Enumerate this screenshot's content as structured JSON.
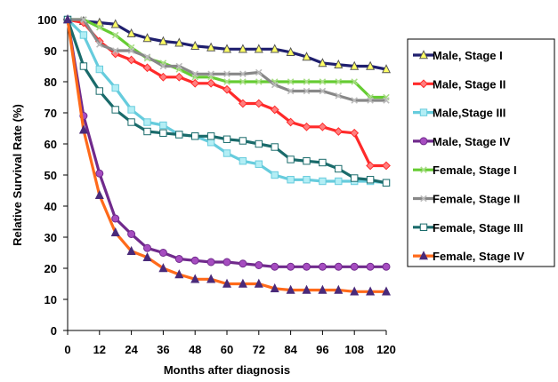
{
  "chart_data": {
    "type": "line",
    "xlabel": "Months after diagnosis",
    "ylabel": "Relative Survival Rate (%)",
    "xlim": [
      0,
      120
    ],
    "ylim": [
      0,
      100
    ],
    "x_ticks": [
      0,
      12,
      24,
      36,
      48,
      60,
      72,
      84,
      96,
      108,
      120
    ],
    "y_ticks": [
      0,
      10,
      20,
      30,
      40,
      50,
      60,
      70,
      80,
      90,
      100
    ],
    "grid": false,
    "legend_position": "right",
    "x": [
      0,
      6,
      12,
      18,
      24,
      30,
      36,
      42,
      48,
      54,
      60,
      66,
      72,
      78,
      84,
      90,
      96,
      102,
      108,
      114,
      120
    ],
    "series": [
      {
        "name": "Male, Stage I",
        "line_color": "#1f1f6e",
        "marker": "triangle",
        "marker_fill": "#ffff66",
        "marker_stroke": "#555555",
        "values": [
          100,
          99.5,
          99,
          98.5,
          95.5,
          94,
          93,
          92.5,
          91.5,
          91,
          90.5,
          90.5,
          90.5,
          90.5,
          89.5,
          88,
          86,
          85.5,
          85,
          85,
          84
        ]
      },
      {
        "name": "Male, Stage II",
        "line_color": "#ff2a2a",
        "marker": "diamond",
        "marker_fill": "#ff7f7f",
        "marker_stroke": "#ff2a2a",
        "values": [
          100,
          99,
          93,
          89,
          87,
          84.5,
          81.5,
          81.5,
          79.5,
          79.5,
          77.5,
          73,
          73,
          71,
          67,
          65.5,
          65.5,
          64,
          63.5,
          53,
          53
        ]
      },
      {
        "name": "Male,Stage III",
        "line_color": "#66ccdd",
        "marker": "square",
        "marker_fill": "#b3eef5",
        "marker_stroke": "#66ccdd",
        "values": [
          100,
          95,
          84,
          78,
          71,
          67,
          66,
          63,
          62.5,
          60.5,
          57,
          54.5,
          53.5,
          50,
          48.5,
          48.5,
          48,
          48,
          48,
          48,
          47.5
        ]
      },
      {
        "name": "Male, Stage IV",
        "line_color": "#702a8c",
        "marker": "circle",
        "marker_fill": "#a64dc0",
        "marker_stroke": "#702a8c",
        "values": [
          100,
          69,
          50.5,
          36,
          31,
          26.5,
          25,
          23,
          22.5,
          22,
          22,
          21.5,
          21,
          20.5,
          20.5,
          20.5,
          20.5,
          20.5,
          20.5,
          20.5,
          20.5
        ]
      },
      {
        "name": "Female, Stage I",
        "line_color": "#66cc33",
        "marker": "x",
        "marker_fill": "#aadd88",
        "marker_stroke": "#88bb66",
        "values": [
          100,
          100,
          97.5,
          95,
          91,
          87.5,
          86,
          84,
          81.5,
          81.5,
          80,
          80,
          80,
          80,
          80,
          80,
          80,
          80,
          80,
          75,
          75
        ]
      },
      {
        "name": "Female, Stage II",
        "line_color": "#888888",
        "marker": "x",
        "marker_fill": "#bbbbbb",
        "marker_stroke": "#999999",
        "values": [
          100,
          100,
          92,
          90,
          90,
          88,
          85,
          85,
          82.5,
          82.5,
          82.5,
          82.5,
          83,
          79,
          77,
          77,
          77,
          75.5,
          74,
          74,
          74
        ]
      },
      {
        "name": "Female, Stage III",
        "line_color": "#1a6b6b",
        "marker": "square",
        "marker_fill": "#ffffff",
        "marker_stroke": "#1a6b6b",
        "values": [
          100,
          85,
          77,
          71,
          67,
          64,
          63.5,
          63,
          62.5,
          62.5,
          61.5,
          61,
          60,
          59,
          55,
          54.5,
          54,
          52,
          49,
          48.5,
          47.5
        ]
      },
      {
        "name": "Female, Stage IV",
        "line_color": "#ff6a1a",
        "marker": "triangle",
        "marker_fill": "#4a2a7a",
        "marker_stroke": "#4a2a7a",
        "values": [
          100,
          64.5,
          43.5,
          31.5,
          25.5,
          23.5,
          20,
          18,
          16.5,
          16.5,
          15,
          15,
          15,
          13.5,
          13,
          13,
          13,
          13,
          12.5,
          12.5,
          12.5
        ]
      }
    ]
  }
}
